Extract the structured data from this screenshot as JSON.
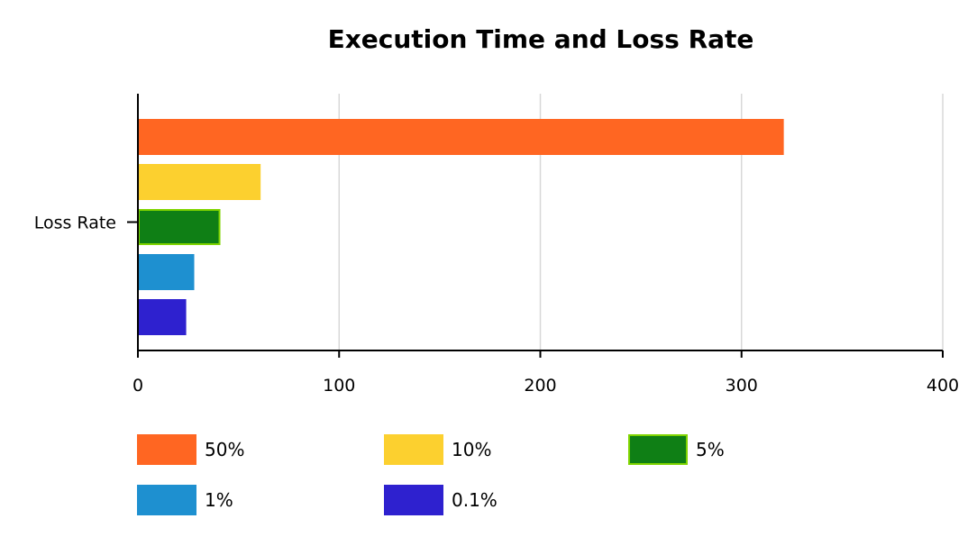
{
  "chart_data": {
    "type": "bar",
    "orientation": "horizontal",
    "title": "Execution Time and Loss Rate",
    "xlabel": "",
    "ylabel": "",
    "categories": [
      "Loss Rate"
    ],
    "xlim": [
      0,
      400
    ],
    "xticks": [
      "0",
      "100",
      "200",
      "300",
      "400"
    ],
    "grid": true,
    "legend_position": "bottom",
    "series": [
      {
        "name": "50%",
        "values": [
          321
        ],
        "color": "#FF6622"
      },
      {
        "name": "10%",
        "values": [
          61
        ],
        "color": "#FCD02F"
      },
      {
        "name": "5%",
        "values": [
          41
        ],
        "color": "#0F7F15",
        "stroke": "#7FD400"
      },
      {
        "name": "1%",
        "values": [
          28
        ],
        "color": "#1E90D0"
      },
      {
        "name": "0.1%",
        "values": [
          24
        ],
        "color": "#2E21CF"
      }
    ]
  }
}
